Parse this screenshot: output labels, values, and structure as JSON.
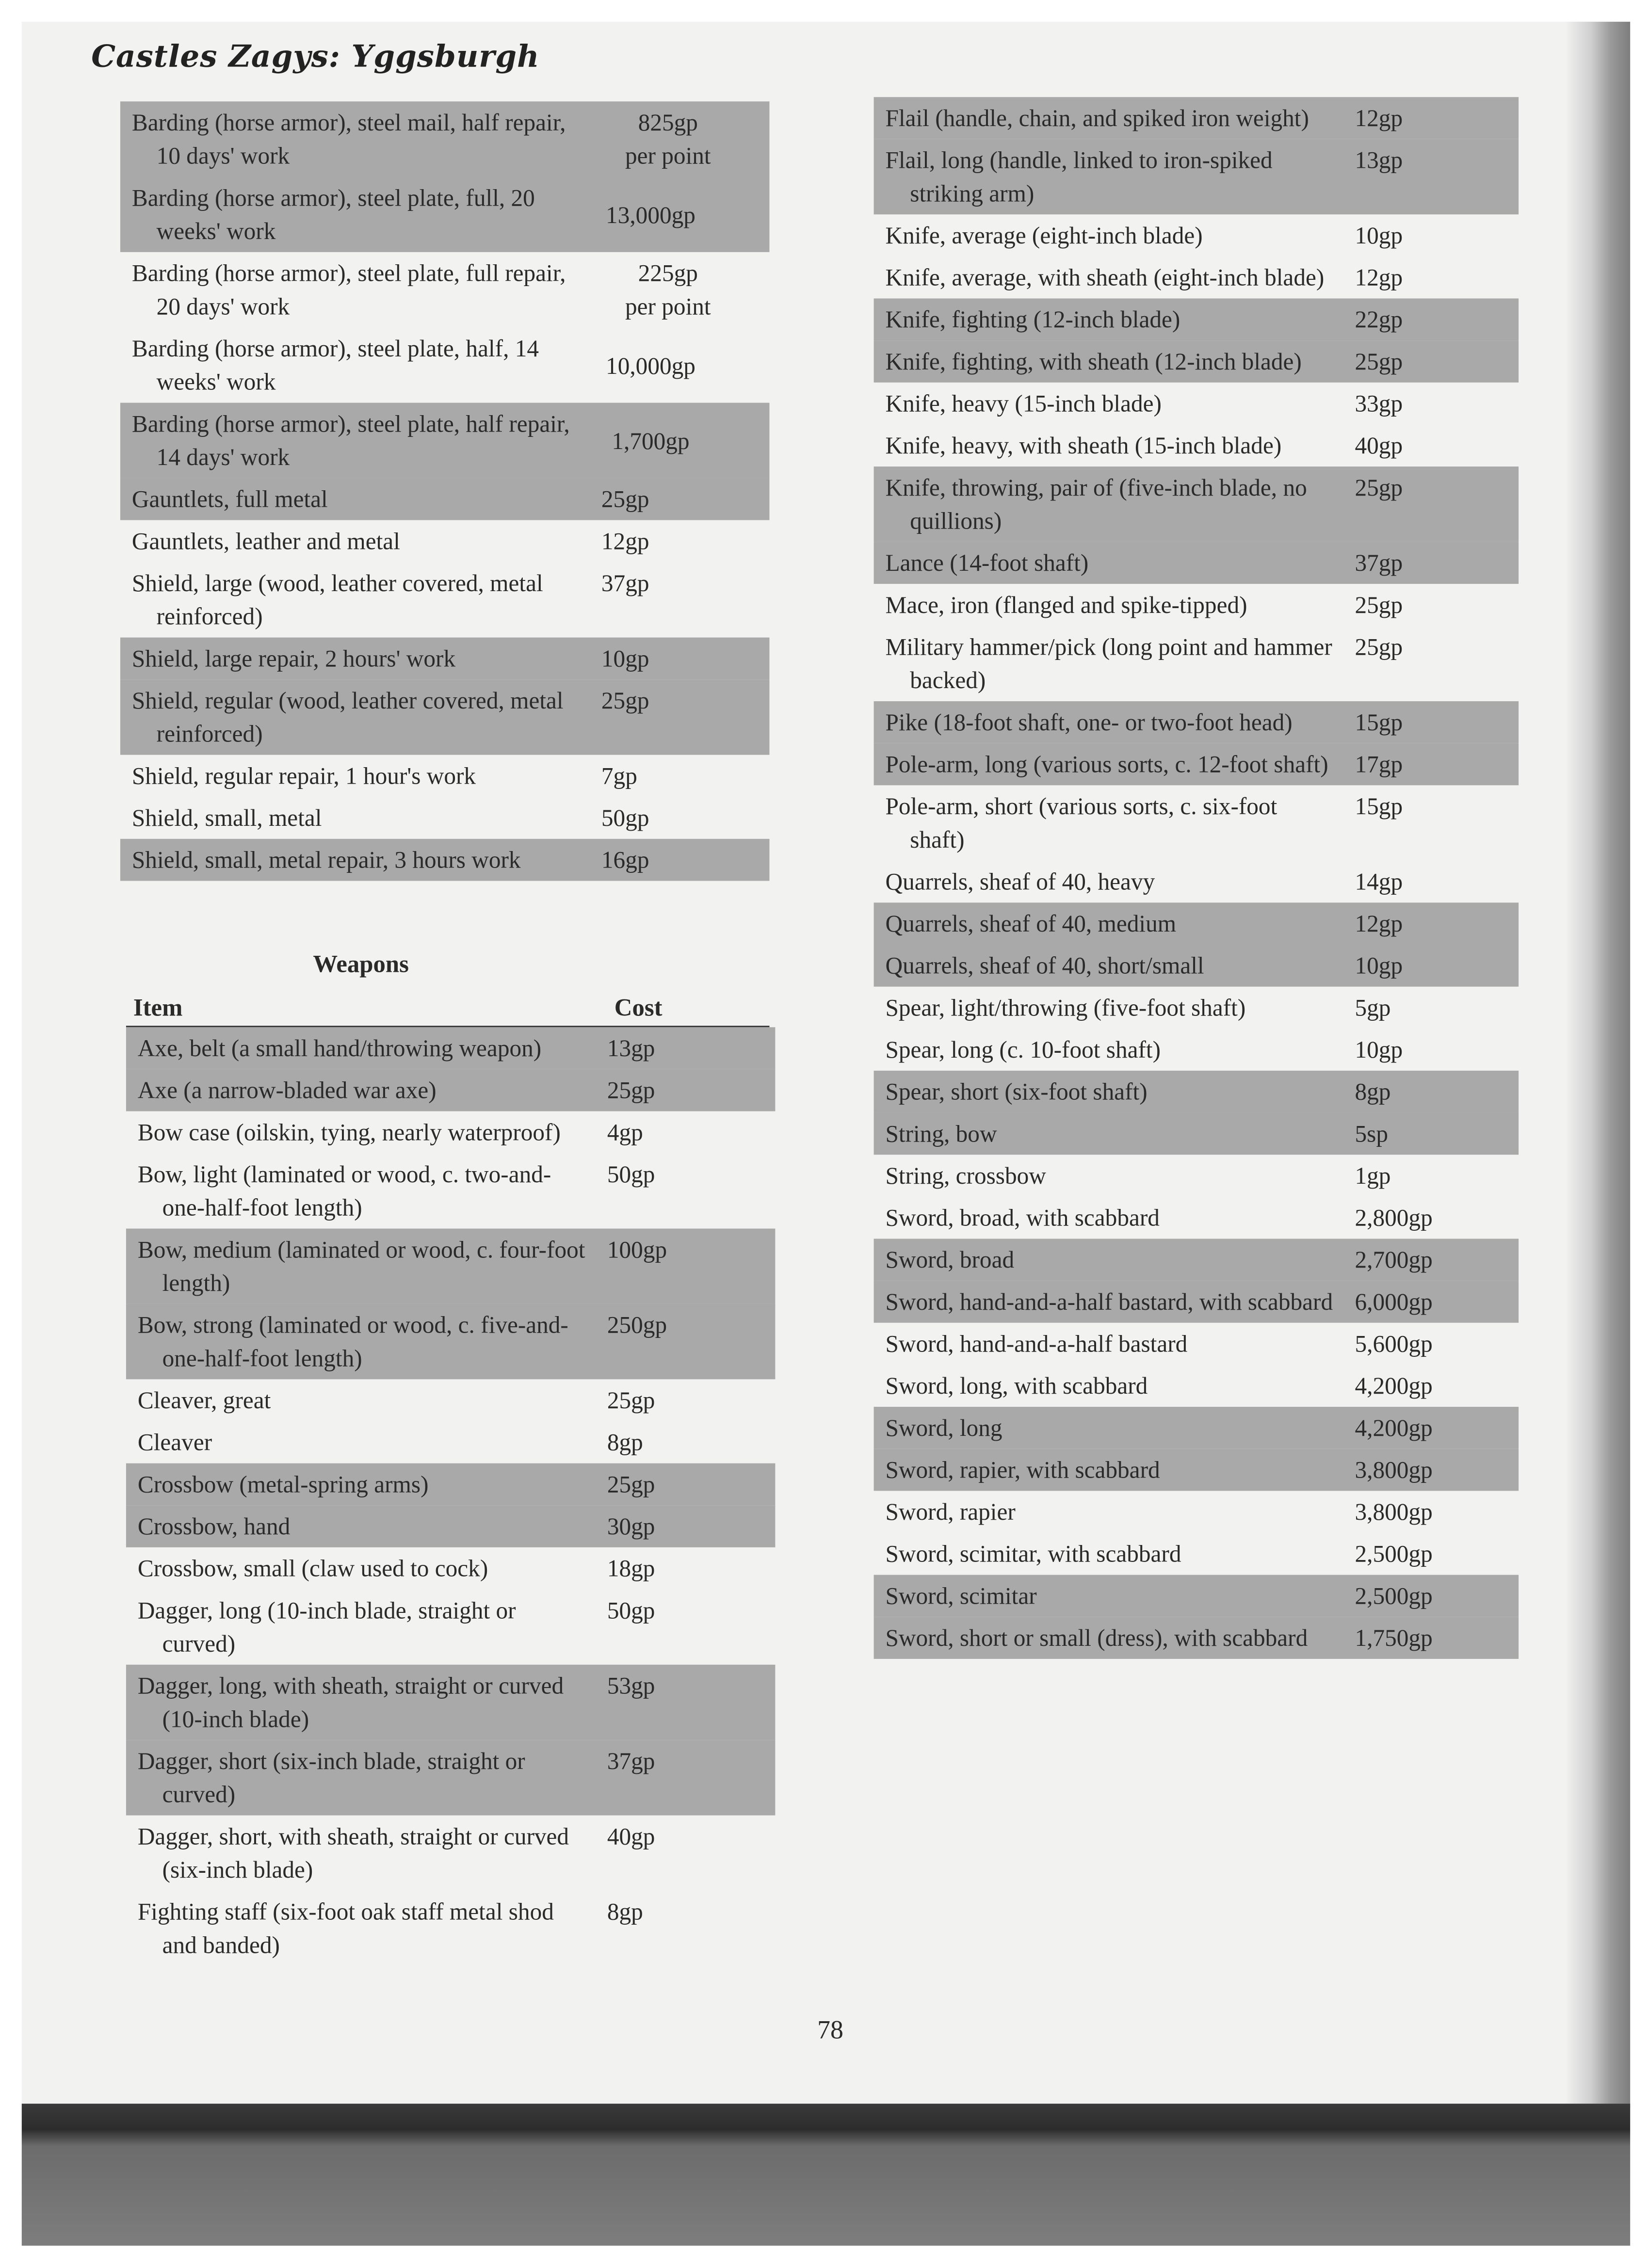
{
  "header": {
    "title": "Castles Zagys: Yggsburgh"
  },
  "armor_table": [
    {
      "item": "Barding (horse armor), steel mail, half repair, 10 days' work",
      "cost": "825gp per point",
      "shaded": true
    },
    {
      "item": "Barding (horse armor), steel plate, full, 20 weeks' work",
      "cost": "13,000gp",
      "shaded": true
    },
    {
      "item": "Barding (horse armor), steel plate, full repair, 20 days' work",
      "cost": "225gp per point",
      "shaded": false
    },
    {
      "item": "Barding (horse armor), steel plate, half, 14 weeks' work",
      "cost": "10,000gp",
      "shaded": false
    },
    {
      "item": "Barding (horse armor), steel plate, half repair, 14 days' work",
      "cost": "1,700gp",
      "shaded": true
    },
    {
      "item": "Gauntlets, full metal",
      "cost": "25gp",
      "shaded": true
    },
    {
      "item": "Gauntlets, leather and metal",
      "cost": "12gp",
      "shaded": false
    },
    {
      "item": "Shield, large (wood, leather covered, metal reinforced)",
      "cost": "37gp",
      "shaded": false
    },
    {
      "item": "Shield, large repair, 2 hours' work",
      "cost": "10gp",
      "shaded": true
    },
    {
      "item": "Shield, regular (wood, leather covered, metal reinforced)",
      "cost": "25gp",
      "shaded": true
    },
    {
      "item": "Shield, regular repair, 1 hour's work",
      "cost": "7gp",
      "shaded": false
    },
    {
      "item": "Shield, small, metal",
      "cost": "50gp",
      "shaded": false
    },
    {
      "item": "Shield, small, metal repair, 3 hours work",
      "cost": "16gp",
      "shaded": true
    }
  ],
  "weapons": {
    "heading": "Weapons",
    "col_item": "Item",
    "col_cost": "Cost",
    "rows_left": [
      {
        "item": "Axe, belt (a small hand/throwing weapon)",
        "cost": "13gp",
        "shaded": true
      },
      {
        "item": "Axe (a narrow-bladed war axe)",
        "cost": "25gp",
        "shaded": true
      },
      {
        "item": "Bow case (oilskin, tying, nearly waterproof)",
        "cost": "4gp",
        "shaded": false
      },
      {
        "item": "Bow, light (laminated or wood, c. two-and-one-half-foot length)",
        "cost": "50gp",
        "shaded": false
      },
      {
        "item": "Bow, medium (laminated or wood, c. four-foot length)",
        "cost": "100gp",
        "shaded": true
      },
      {
        "item": "Bow, strong (laminated or wood, c. five-and-one-half-foot length)",
        "cost": "250gp",
        "shaded": true
      },
      {
        "item": "Cleaver, great",
        "cost": "25gp",
        "shaded": false
      },
      {
        "item": "Cleaver",
        "cost": "8gp",
        "shaded": false
      },
      {
        "item": "Crossbow (metal-spring arms)",
        "cost": "25gp",
        "shaded": true
      },
      {
        "item": "Crossbow, hand",
        "cost": "30gp",
        "shaded": true
      },
      {
        "item": "Crossbow, small (claw used to cock)",
        "cost": "18gp",
        "shaded": false
      },
      {
        "item": "Dagger, long (10-inch blade, straight or curved)",
        "cost": "50gp",
        "shaded": false
      },
      {
        "item": "Dagger, long, with sheath, straight or curved (10-inch blade)",
        "cost": "53gp",
        "shaded": true
      },
      {
        "item": "Dagger, short (six-inch blade, straight or curved)",
        "cost": "37gp",
        "shaded": true
      },
      {
        "item": "Dagger, short, with sheath, straight or curved (six-inch blade)",
        "cost": "40gp",
        "shaded": false
      },
      {
        "item": "Fighting staff (six-foot oak staff metal shod and banded)",
        "cost": "8gp",
        "shaded": false
      }
    ],
    "rows_right": [
      {
        "item": "Flail (handle, chain, and spiked iron weight)",
        "cost": "12gp",
        "shaded": true
      },
      {
        "item": "Flail, long (handle, linked to iron-spiked striking arm)",
        "cost": "13gp",
        "shaded": true
      },
      {
        "item": "Knife, average (eight-inch blade)",
        "cost": "10gp",
        "shaded": false
      },
      {
        "item": "Knife, average, with sheath (eight-inch blade)",
        "cost": "12gp",
        "shaded": false
      },
      {
        "item": "Knife, fighting (12-inch blade)",
        "cost": "22gp",
        "shaded": true
      },
      {
        "item": "Knife, fighting, with sheath (12-inch blade)",
        "cost": "25gp",
        "shaded": true
      },
      {
        "item": "Knife, heavy (15-inch blade)",
        "cost": "33gp",
        "shaded": false
      },
      {
        "item": "Knife, heavy, with sheath (15-inch blade)",
        "cost": "40gp",
        "shaded": false
      },
      {
        "item": "Knife, throwing, pair of (five-inch blade, no quillions)",
        "cost": "25gp",
        "shaded": true
      },
      {
        "item": "Lance (14-foot shaft)",
        "cost": "37gp",
        "shaded": true
      },
      {
        "item": "Mace, iron (flanged and spike-tipped)",
        "cost": "25gp",
        "shaded": false
      },
      {
        "item": "Military hammer/pick (long point and hammer backed)",
        "cost": "25gp",
        "shaded": false
      },
      {
        "item": "Pike (18-foot shaft, one- or two-foot head)",
        "cost": "15gp",
        "shaded": true
      },
      {
        "item": "Pole-arm, long (various sorts, c. 12-foot shaft)",
        "cost": "17gp",
        "shaded": true
      },
      {
        "item": "Pole-arm, short (various sorts, c. six-foot shaft)",
        "cost": "15gp",
        "shaded": false
      },
      {
        "item": "Quarrels, sheaf of 40, heavy",
        "cost": "14gp",
        "shaded": false
      },
      {
        "item": "Quarrels, sheaf of 40, medium",
        "cost": "12gp",
        "shaded": true
      },
      {
        "item": "Quarrels, sheaf of 40, short/small",
        "cost": "10gp",
        "shaded": true
      },
      {
        "item": "Spear, light/throwing (five-foot shaft)",
        "cost": "5gp",
        "shaded": false
      },
      {
        "item": "Spear, long (c. 10-foot shaft)",
        "cost": "10gp",
        "shaded": false
      },
      {
        "item": "Spear, short (six-foot shaft)",
        "cost": "8gp",
        "shaded": true
      },
      {
        "item": "String, bow",
        "cost": "5sp",
        "shaded": true
      },
      {
        "item": "String, crossbow",
        "cost": "1gp",
        "shaded": false
      },
      {
        "item": "Sword, broad, with scabbard",
        "cost": "2,800gp",
        "shaded": false
      },
      {
        "item": "Sword, broad",
        "cost": "2,700gp",
        "shaded": true
      },
      {
        "item": "Sword, hand-and-a-half bastard, with scabbard",
        "cost": "6,000gp",
        "shaded": true
      },
      {
        "item": "Sword, hand-and-a-half bastard",
        "cost": "5,600gp",
        "shaded": false
      },
      {
        "item": "Sword, long, with scabbard",
        "cost": "4,200gp",
        "shaded": false
      },
      {
        "item": "Sword, long",
        "cost": "4,200gp",
        "shaded": true
      },
      {
        "item": "Sword, rapier, with scabbard",
        "cost": "3,800gp",
        "shaded": true
      },
      {
        "item": "Sword, rapier",
        "cost": "3,800gp",
        "shaded": false
      },
      {
        "item": "Sword, scimitar, with scabbard",
        "cost": "2,500gp",
        "shaded": false
      },
      {
        "item": "Sword, scimitar",
        "cost": "2,500gp",
        "shaded": true
      },
      {
        "item": "Sword, short or small (dress), with scabbard",
        "cost": "1,750gp",
        "shaded": true
      }
    ]
  },
  "footer": {
    "page_number": "78"
  },
  "colors": {
    "paper": "#f2f2f1",
    "shaded_row": "#a9a9a9",
    "text": "#2a2a2a",
    "binding_band": "#2c2c2c"
  }
}
